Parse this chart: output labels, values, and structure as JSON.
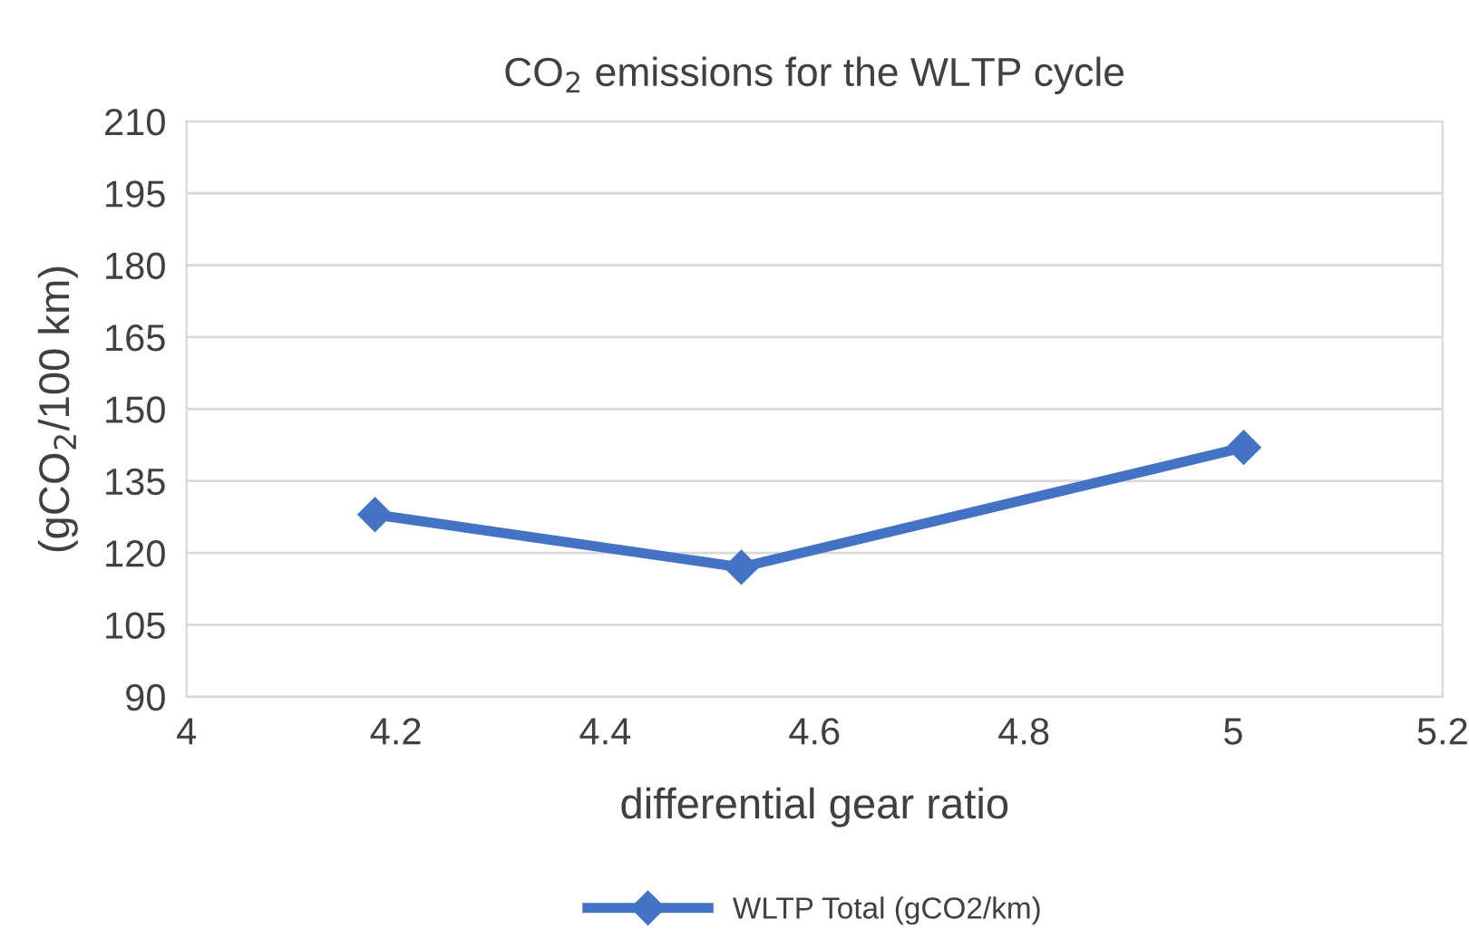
{
  "chart_data": {
    "type": "line",
    "title": "CO$_{2}$ emissions for the WLTP cycle",
    "xlabel": "differential gear ratio",
    "ylabel": "(gCO$_{2}$/100 km)",
    "x": [
      4.18,
      4.53,
      5.01
    ],
    "series": [
      {
        "name": "WLTP Total (gCO2/km)",
        "color": "#4472c4",
        "values": [
          128,
          117,
          142
        ]
      }
    ],
    "xlim": [
      4,
      5.2
    ],
    "xticks": [
      4,
      4.2,
      4.4,
      4.6,
      4.8,
      5,
      5.2
    ],
    "ylim": [
      90,
      210
    ],
    "yticks": [
      90,
      105,
      120,
      135,
      150,
      165,
      180,
      195,
      210
    ],
    "grid": "y",
    "legend": "bottom",
    "marker": "diamond",
    "line_style": "solid"
  }
}
